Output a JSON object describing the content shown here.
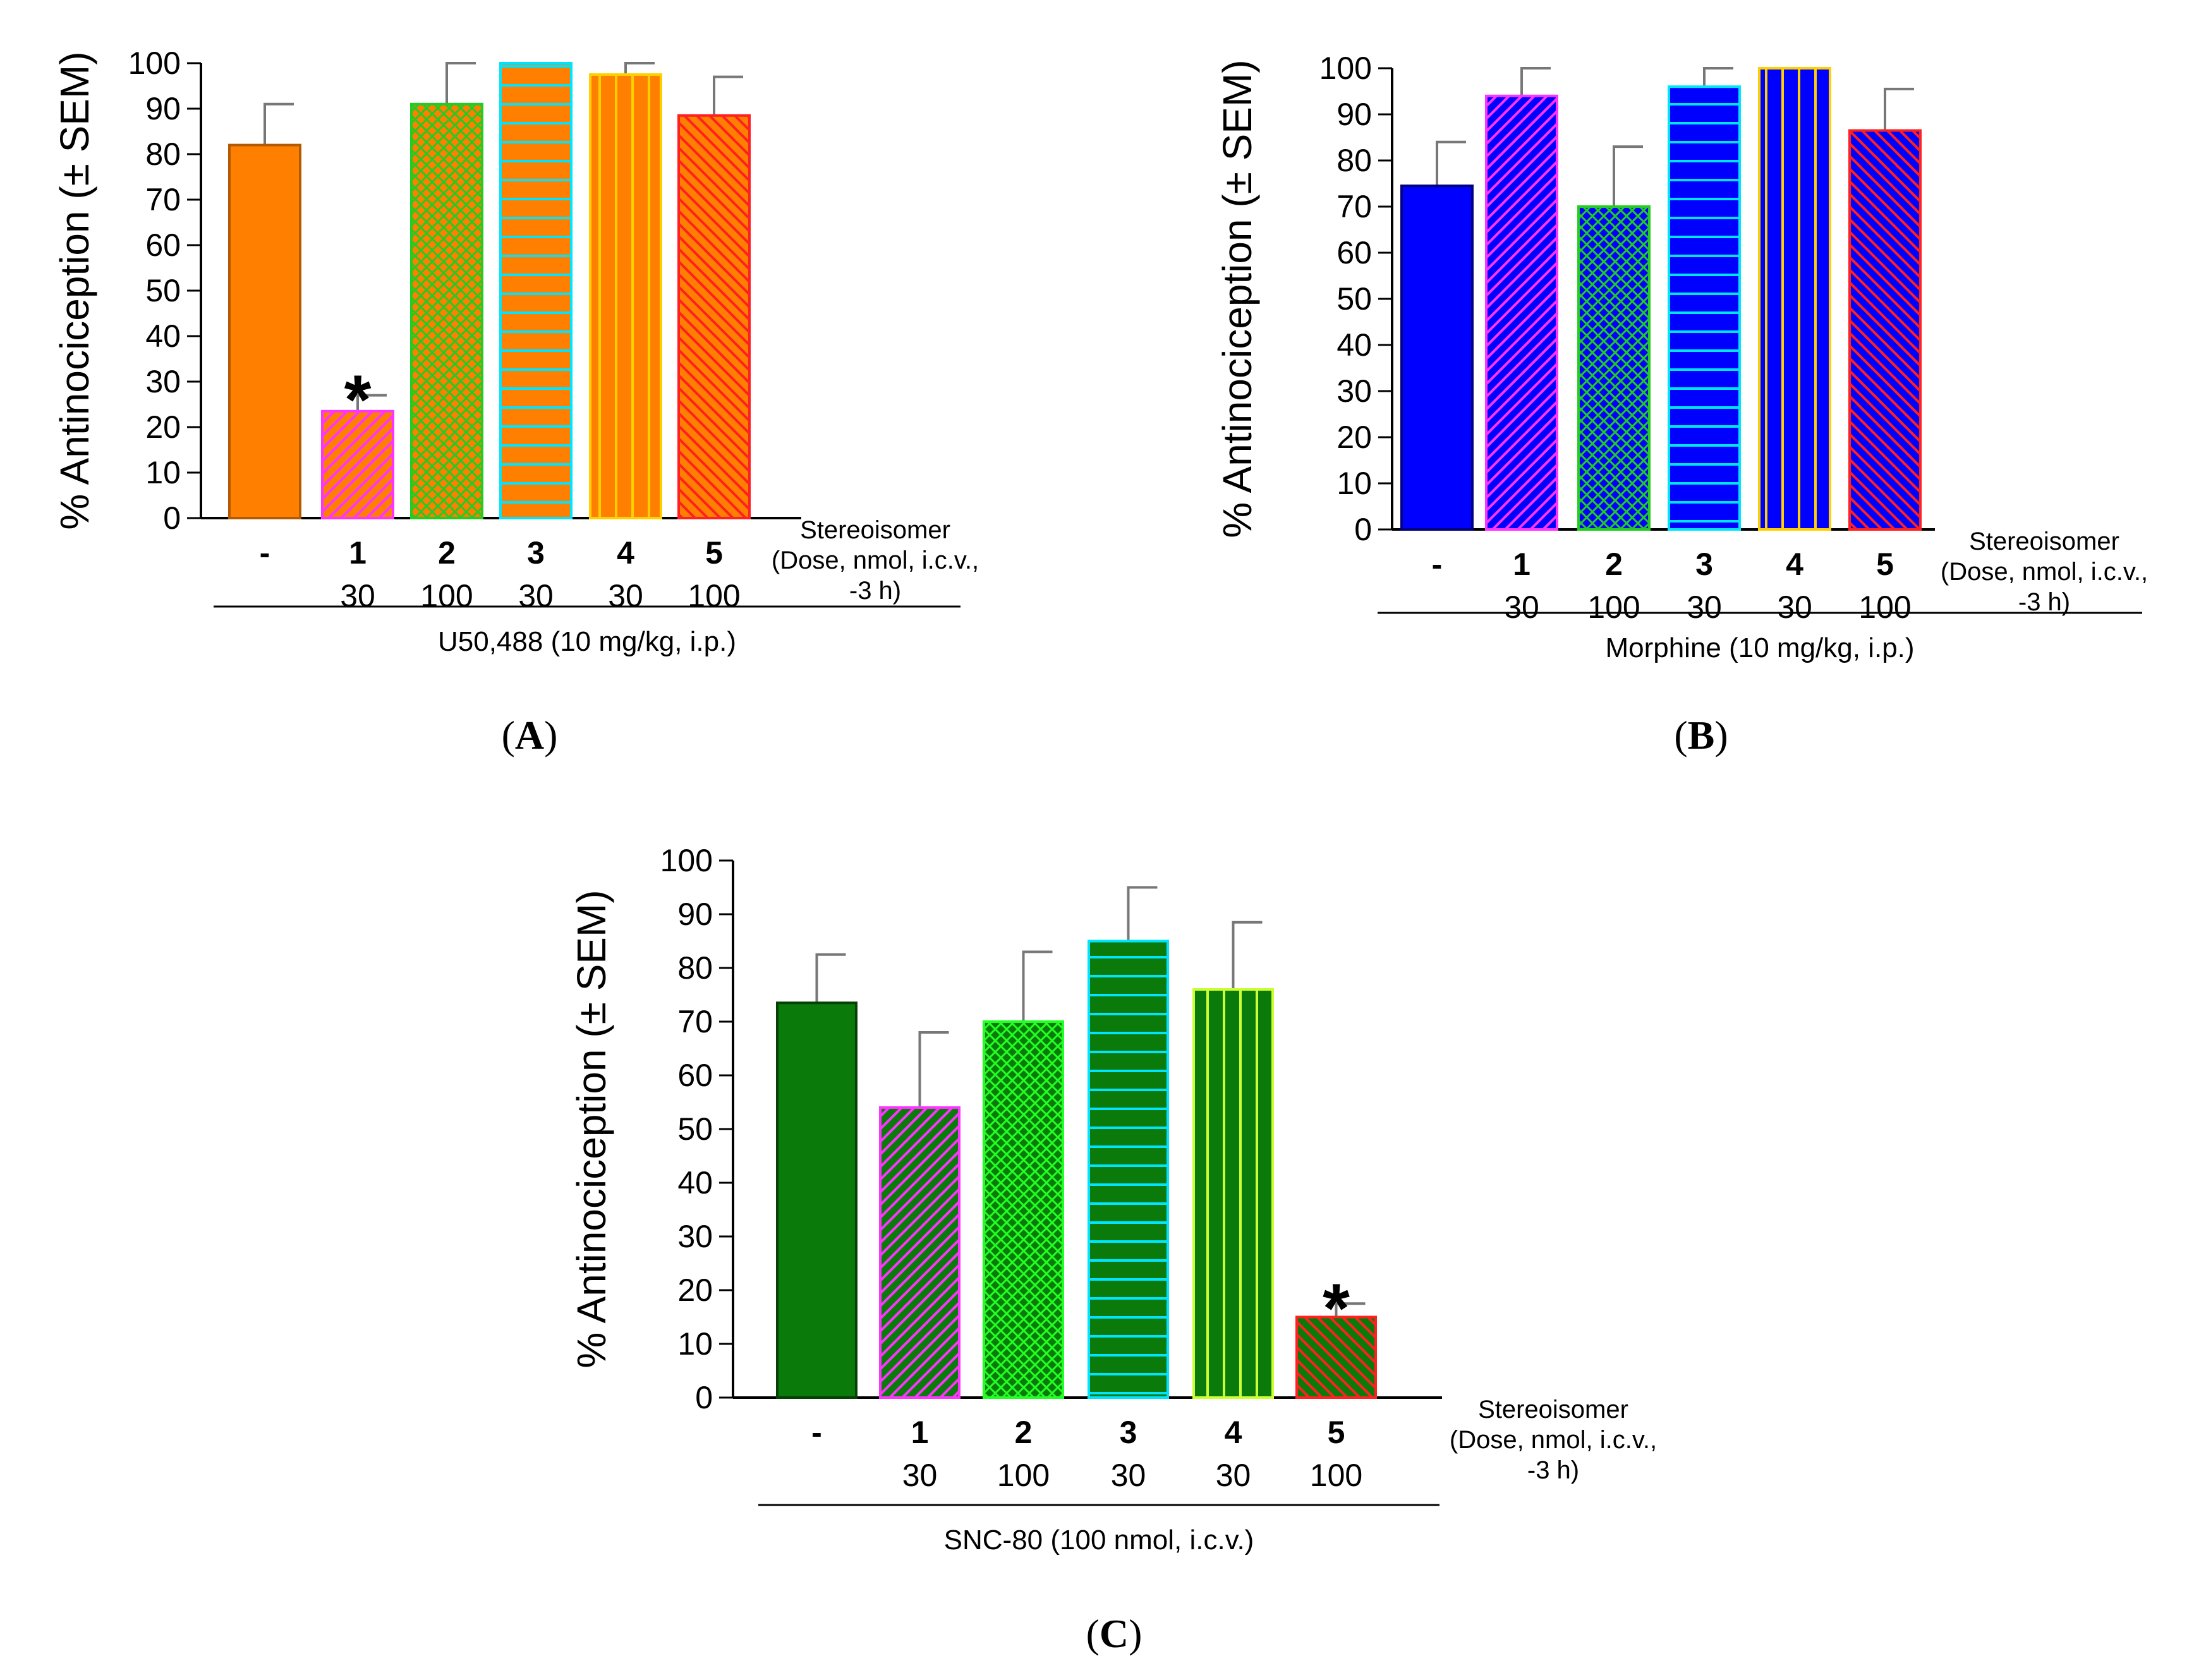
{
  "chart_data": [
    {
      "type": "bar",
      "panel": "A",
      "ylabel": "% Antinociception (± SEM)",
      "ylim": [
        0,
        100
      ],
      "yticks": [
        0,
        10,
        20,
        30,
        40,
        50,
        60,
        70,
        80,
        90,
        100
      ],
      "categories": [
        "-",
        "1",
        "2",
        "3",
        "4",
        "5"
      ],
      "doses": [
        "",
        "30",
        "100",
        "30",
        "30",
        "100"
      ],
      "values": [
        82,
        23.5,
        91,
        100,
        97.5,
        88.5
      ],
      "errors": [
        9,
        3.5,
        9,
        0,
        2.5,
        8.5
      ],
      "significant": [
        false,
        true,
        false,
        false,
        false,
        false
      ],
      "side_label": [
        "Stereoisomer",
        "(Dose, nmol, i.c.v.,",
        "-3 h)"
      ],
      "drug_label": "U50,488 (10 mg/kg, i.p.)",
      "bar_styles": [
        {
          "fill": "#ff8000",
          "stroke": "#b35900",
          "pattern": "solid"
        },
        {
          "fill": "#ff8000",
          "stroke": "#ff33ff",
          "pattern": "diag",
          "pattern_color": "#ff33ff"
        },
        {
          "fill": "#ff8000",
          "stroke": "#22cc22",
          "pattern": "cross",
          "pattern_color": "#22cc22"
        },
        {
          "fill": "#ff8000",
          "stroke": "#00e5ff",
          "pattern": "hlines",
          "pattern_color": "#00e5ff"
        },
        {
          "fill": "#ff8000",
          "stroke": "#ffd000",
          "pattern": "vlines",
          "pattern_color": "#ffd000"
        },
        {
          "fill": "#ff8000",
          "stroke": "#ff2020",
          "pattern": "rdiag",
          "pattern_color": "#ff2020"
        }
      ]
    },
    {
      "type": "bar",
      "panel": "B",
      "ylabel": "% Antinociception (± SEM)",
      "ylim": [
        0,
        100
      ],
      "yticks": [
        0,
        10,
        20,
        30,
        40,
        50,
        60,
        70,
        80,
        90,
        100
      ],
      "categories": [
        "-",
        "1",
        "2",
        "3",
        "4",
        "5"
      ],
      "doses": [
        "",
        "30",
        "100",
        "30",
        "30",
        "100"
      ],
      "values": [
        74.5,
        94,
        70,
        96,
        100,
        86.5
      ],
      "errors": [
        9.5,
        6,
        13,
        4,
        0,
        9
      ],
      "significant": [
        false,
        false,
        false,
        false,
        false,
        false
      ],
      "side_label": [
        "Stereoisomer",
        "(Dose, nmol, i.c.v.,",
        "-3 h)"
      ],
      "drug_label": "Morphine (10 mg/kg, i.p.)",
      "bar_styles": [
        {
          "fill": "#0000ff",
          "stroke": "#000080",
          "pattern": "solid"
        },
        {
          "fill": "#0000ff",
          "stroke": "#ff33ff",
          "pattern": "diag",
          "pattern_color": "#ff33ff"
        },
        {
          "fill": "#0000ff",
          "stroke": "#22cc22",
          "pattern": "cross",
          "pattern_color": "#22cc22"
        },
        {
          "fill": "#0000ff",
          "stroke": "#00e5ff",
          "pattern": "hlines",
          "pattern_color": "#00e5ff"
        },
        {
          "fill": "#0000ff",
          "stroke": "#ffd000",
          "pattern": "vlines",
          "pattern_color": "#ffd000"
        },
        {
          "fill": "#0000ff",
          "stroke": "#ff2020",
          "pattern": "rdiag",
          "pattern_color": "#ff2020"
        }
      ]
    },
    {
      "type": "bar",
      "panel": "C",
      "ylabel": "% Antinociception (± SEM)",
      "ylim": [
        0,
        100
      ],
      "yticks": [
        0,
        10,
        20,
        30,
        40,
        50,
        60,
        70,
        80,
        90,
        100
      ],
      "categories": [
        "-",
        "1",
        "2",
        "3",
        "4",
        "5"
      ],
      "doses": [
        "",
        "30",
        "100",
        "30",
        "30",
        "100"
      ],
      "values": [
        73.5,
        54,
        70,
        85,
        76,
        15
      ],
      "errors": [
        9,
        14,
        13,
        10,
        12.5,
        2.5
      ],
      "significant": [
        false,
        false,
        false,
        false,
        false,
        true
      ],
      "side_label": [
        "Stereoisomer",
        "(Dose, nmol, i.c.v.,",
        "-3 h)"
      ],
      "drug_label": "SNC-80 (100 nmol, i.c.v.)",
      "bar_styles": [
        {
          "fill": "#0a7a0a",
          "stroke": "#054005",
          "pattern": "solid"
        },
        {
          "fill": "#0a7a0a",
          "stroke": "#ff33ff",
          "pattern": "diag",
          "pattern_color": "#ff33ff"
        },
        {
          "fill": "#0a7a0a",
          "stroke": "#22ff22",
          "pattern": "cross",
          "pattern_color": "#22ff22"
        },
        {
          "fill": "#0a7a0a",
          "stroke": "#00e5ff",
          "pattern": "hlines",
          "pattern_color": "#00e5ff"
        },
        {
          "fill": "#0a7a0a",
          "stroke": "#ccff33",
          "pattern": "vlines",
          "pattern_color": "#ccff33"
        },
        {
          "fill": "#0a7a0a",
          "stroke": "#ff2020",
          "pattern": "rdiag",
          "pattern_color": "#ff2020"
        }
      ]
    }
  ],
  "panel_labels": [
    "A",
    "B",
    "C"
  ],
  "significance_marker": "*"
}
